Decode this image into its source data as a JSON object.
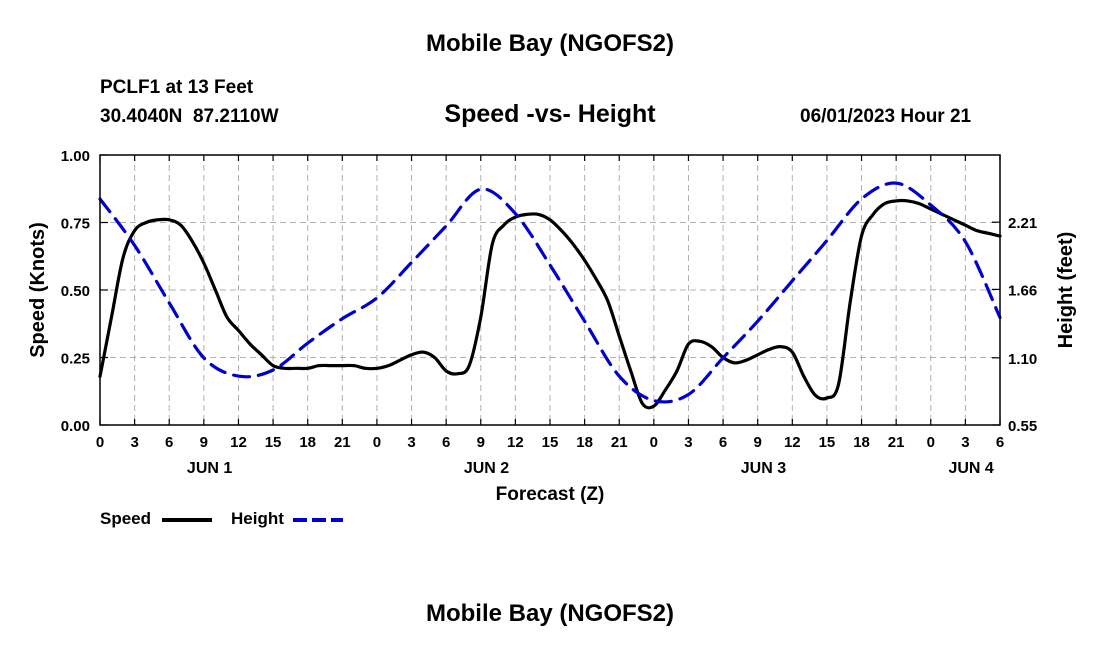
{
  "header": {
    "title": "Mobile Bay (NGOFS2)",
    "station": "PCLF1 at 13 Feet",
    "coords": "30.4040N  87.2110W",
    "subtitle": "Speed -vs- Height",
    "timestamp": "06/01/2023 Hour 21"
  },
  "footer": {
    "title": "Mobile Bay (NGOFS2)"
  },
  "legend": [
    {
      "label": "Speed",
      "color": "#000000",
      "dash": "solid"
    },
    {
      "label": "Height",
      "color": "#0000cc",
      "dash": "dashed"
    }
  ],
  "chart_data": {
    "type": "line",
    "title": "Speed -vs- Height",
    "xlabel": "Forecast (Z)",
    "ylabel": "Speed (Knots)",
    "y2label": "Height (feet)",
    "xlim": [
      0,
      78
    ],
    "ylim": [
      0,
      1.0
    ],
    "y2lim": [
      0.55,
      2.76
    ],
    "grid": true,
    "x_ticks": [
      0,
      3,
      6,
      9,
      12,
      15,
      18,
      21,
      24,
      27,
      30,
      33,
      36,
      39,
      42,
      45,
      48,
      51,
      54,
      57,
      60,
      63,
      66,
      69,
      72,
      75,
      78
    ],
    "x_tick_labels": [
      "0",
      "3",
      "6",
      "9",
      "12",
      "15",
      "18",
      "21",
      "0",
      "3",
      "6",
      "9",
      "12",
      "15",
      "18",
      "21",
      "0",
      "3",
      "6",
      "9",
      "12",
      "15",
      "18",
      "21",
      "0",
      "3",
      "6"
    ],
    "y_ticks": [
      0.0,
      0.25,
      0.5,
      0.75,
      1.0
    ],
    "y_tick_labels": [
      "0.00",
      "0.25",
      "0.50",
      "0.75",
      "1.00"
    ],
    "y2_ticks": [
      0.55,
      1.1,
      1.66,
      2.21
    ],
    "y2_tick_labels": [
      "0.55",
      "1.10",
      "1.66",
      "2.21"
    ],
    "day_labels": [
      {
        "x": 9.5,
        "label": "JUN 1"
      },
      {
        "x": 33.5,
        "label": "JUN 2"
      },
      {
        "x": 57.5,
        "label": "JUN 3"
      },
      {
        "x": 75.5,
        "label": "JUN 4"
      }
    ],
    "series": [
      {
        "name": "Speed",
        "axis": "left",
        "color": "#000000",
        "x": [
          0,
          1,
          2,
          3,
          4,
          5,
          6,
          7,
          8,
          9,
          10,
          11,
          12,
          13,
          14,
          15,
          16,
          17,
          18,
          19,
          20,
          21,
          22,
          23,
          24,
          25,
          26,
          27,
          28,
          29,
          30,
          31,
          32,
          33,
          34,
          35,
          36,
          37,
          38,
          39,
          40,
          41,
          42,
          43,
          44,
          45,
          46,
          47,
          48,
          49,
          50,
          51,
          52,
          53,
          54,
          55,
          56,
          57,
          58,
          59,
          60,
          61,
          62,
          63,
          64,
          65,
          66,
          67,
          68,
          69,
          70,
          71,
          72,
          73,
          74,
          75,
          76,
          77,
          78
        ],
        "values": [
          0.18,
          0.4,
          0.62,
          0.72,
          0.75,
          0.76,
          0.76,
          0.74,
          0.68,
          0.6,
          0.5,
          0.4,
          0.35,
          0.3,
          0.26,
          0.22,
          0.21,
          0.21,
          0.21,
          0.22,
          0.22,
          0.22,
          0.22,
          0.21,
          0.21,
          0.22,
          0.24,
          0.26,
          0.27,
          0.25,
          0.2,
          0.19,
          0.22,
          0.4,
          0.67,
          0.74,
          0.77,
          0.78,
          0.78,
          0.76,
          0.72,
          0.67,
          0.61,
          0.54,
          0.46,
          0.33,
          0.2,
          0.08,
          0.07,
          0.13,
          0.2,
          0.3,
          0.31,
          0.29,
          0.25,
          0.23,
          0.24,
          0.26,
          0.28,
          0.29,
          0.27,
          0.18,
          0.11,
          0.1,
          0.15,
          0.45,
          0.7,
          0.78,
          0.82,
          0.83,
          0.83,
          0.82,
          0.8,
          0.78,
          0.76,
          0.74,
          0.72,
          0.71,
          0.7
        ]
      },
      {
        "name": "Height",
        "axis": "right",
        "color": "#0000cc",
        "x": [
          0,
          3,
          6,
          9,
          12,
          15,
          18,
          21,
          24,
          27,
          30,
          33,
          36,
          39,
          42,
          45,
          48,
          51,
          54,
          57,
          60,
          63,
          66,
          69,
          72,
          75,
          78
        ],
        "values": [
          2.4,
          2.02,
          1.55,
          1.1,
          0.95,
          1.0,
          1.22,
          1.42,
          1.59,
          1.88,
          2.18,
          2.48,
          2.28,
          1.86,
          1.4,
          0.95,
          0.75,
          0.8,
          1.1,
          1.4,
          1.73,
          2.06,
          2.4,
          2.53,
          2.35,
          2.05,
          1.43
        ]
      }
    ]
  }
}
